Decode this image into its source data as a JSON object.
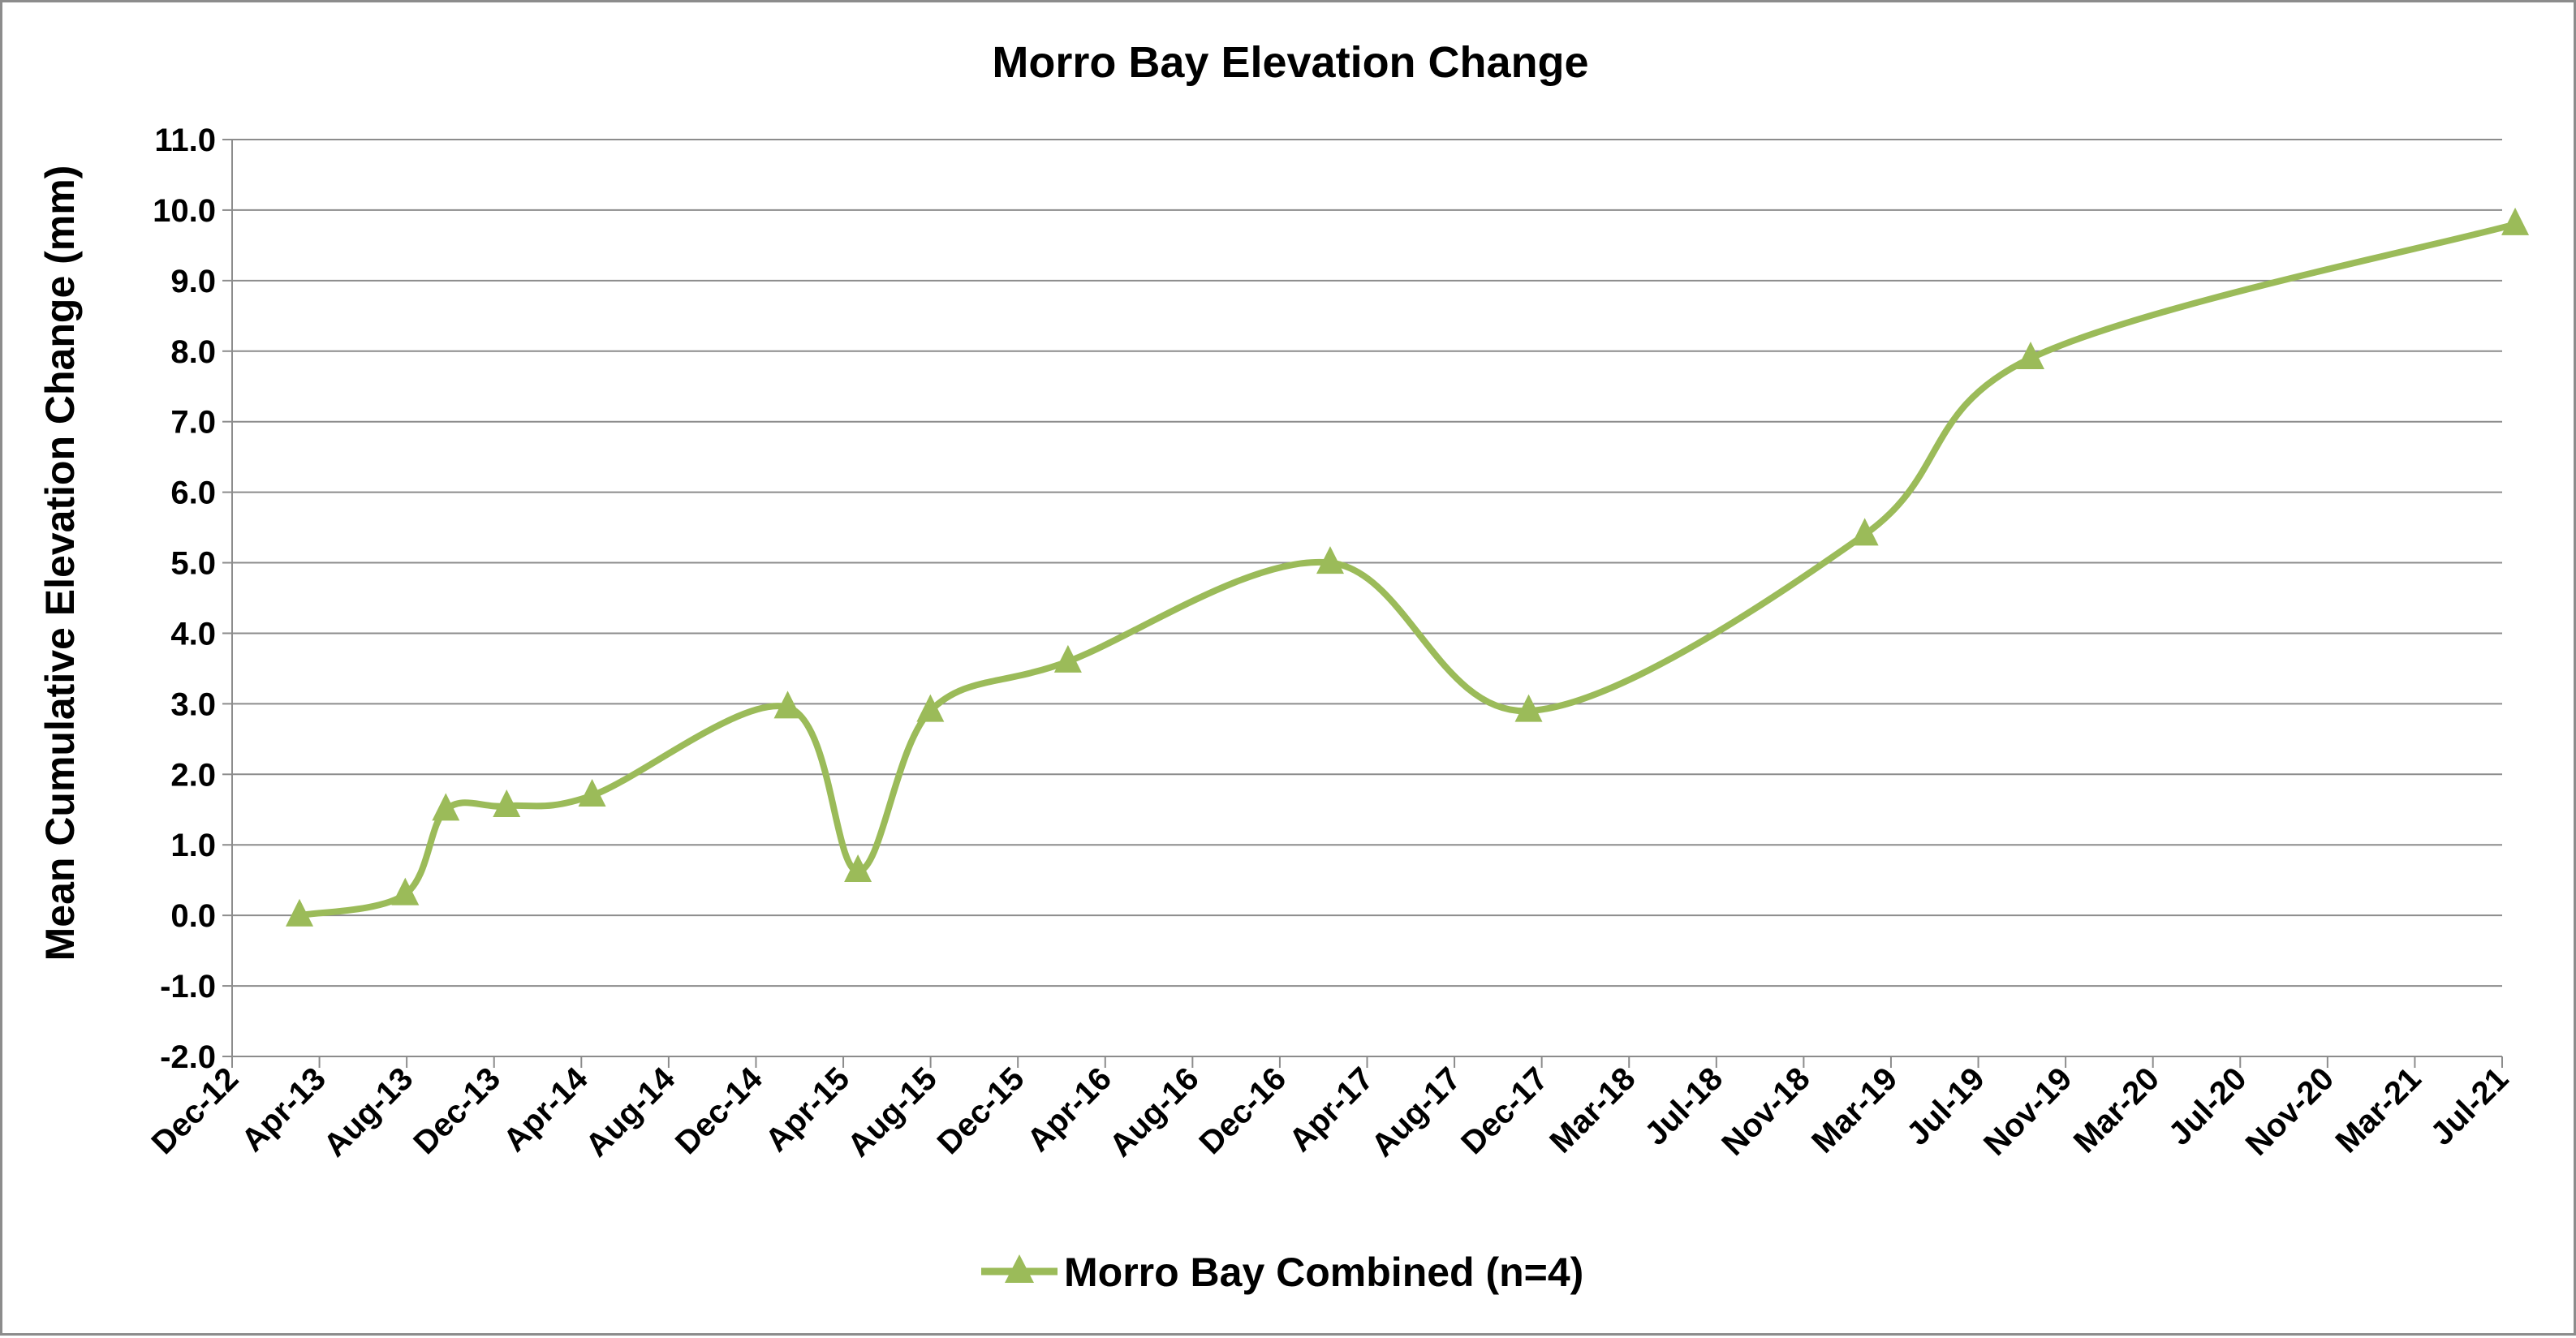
{
  "chart_data": {
    "type": "line",
    "title": "Morro Bay Elevation Change",
    "xlabel": "",
    "ylabel": "Mean Cumulative Elevation Change (mm)",
    "ylim": [
      -2.0,
      11.0
    ],
    "ytick_labels": [
      "-2.0",
      "-1.0",
      "0.0",
      "1.0",
      "2.0",
      "3.0",
      "4.0",
      "5.0",
      "6.0",
      "7.0",
      "8.0",
      "9.0",
      "10.0",
      "11.0"
    ],
    "xtick_labels": [
      "Dec-12",
      "Apr-13",
      "Aug-13",
      "Dec-13",
      "Apr-14",
      "Aug-14",
      "Dec-14",
      "Apr-15",
      "Aug-15",
      "Dec-15",
      "Apr-16",
      "Aug-16",
      "Dec-16",
      "Apr-17",
      "Aug-17",
      "Dec-17",
      "Mar-18",
      "Jul-18",
      "Nov-18",
      "Mar-19",
      "Jul-19",
      "Nov-19",
      "Mar-20",
      "Jul-20",
      "Nov-20",
      "Mar-21",
      "Jul-21"
    ],
    "xlim": [
      "Dec-12",
      "Jul-21"
    ],
    "grid": "horizontal",
    "legend_position": "bottom",
    "series": [
      {
        "name": "Morro Bay Combined (n=4)",
        "color": "#9bbb59",
        "marker": "triangle",
        "x": [
          "2013-03-04",
          "2013-07-28",
          "2013-09-22",
          "2013-12-15",
          "2014-04-12",
          "2015-01-07",
          "2015-04-14",
          "2015-07-23",
          "2016-01-29",
          "2017-01-25",
          "2017-10-26",
          "2019-02-02",
          "2019-09-19",
          "2021-07-19"
        ],
        "values": [
          0.0,
          0.3,
          1.5,
          1.55,
          1.7,
          2.95,
          0.63,
          2.9,
          3.6,
          5.0,
          2.9,
          5.4,
          7.9,
          9.8
        ]
      }
    ]
  }
}
